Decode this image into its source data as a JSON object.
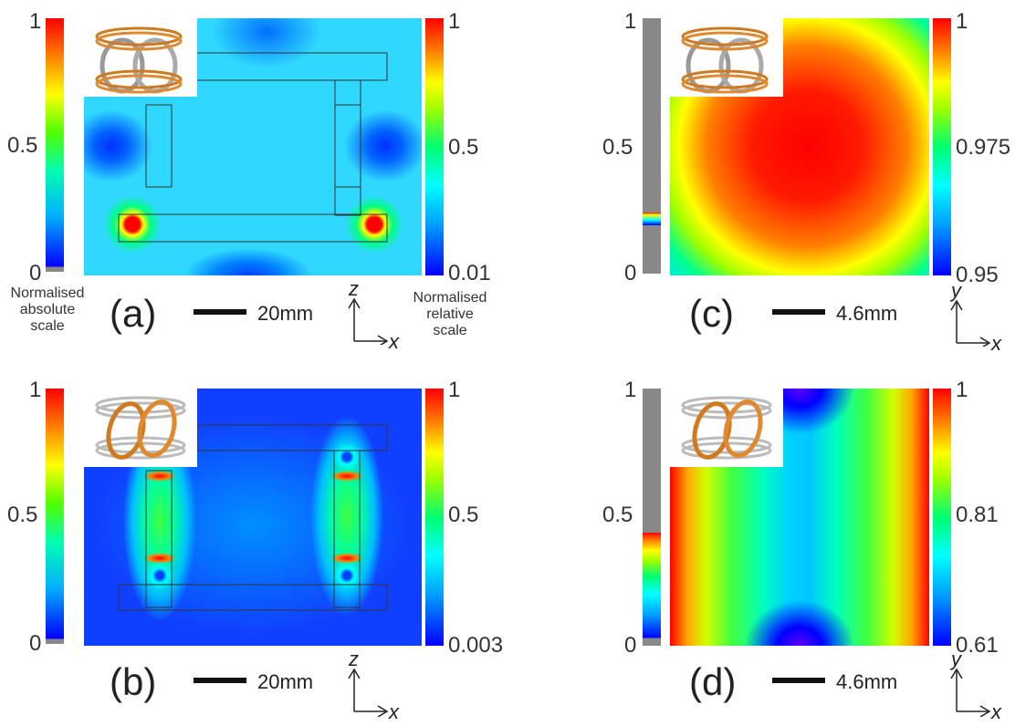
{
  "panels": {
    "a": {
      "label": "(a)",
      "scale_text": "20mm",
      "abs_ticks": [
        "1",
        "0.5",
        "0"
      ],
      "rel_ticks": [
        "1",
        "0.5",
        "0.01"
      ],
      "abs_caption": "Normalised\nabsolute\nscale",
      "rel_caption": "Normalised\nrelative\nscale",
      "axis_v": "z",
      "axis_h": "x"
    },
    "b": {
      "label": "(b)",
      "scale_text": "20mm",
      "abs_ticks": [
        "1",
        "0.5",
        "0"
      ],
      "rel_ticks": [
        "1",
        "0.5",
        "0.003"
      ],
      "axis_v": "z",
      "axis_h": "x"
    },
    "c": {
      "label": "(c)",
      "scale_text": "4.6mm",
      "abs_ticks": [
        "1",
        "0.5",
        "0"
      ],
      "rel_ticks": [
        "1",
        "0.975",
        "0.95"
      ],
      "axis_v": "y",
      "axis_h": "x"
    },
    "d": {
      "label": "(d)",
      "scale_text": "4.6mm",
      "abs_ticks": [
        "1",
        "0.5",
        "0"
      ],
      "rel_ticks": [
        "1",
        "0.81",
        "0.61"
      ],
      "axis_v": "y",
      "axis_h": "x"
    }
  },
  "colormap": [
    "#0000ff",
    "#00a0ff",
    "#00ffff",
    "#00ff70",
    "#a0ff00",
    "#ffff00",
    "#ff8000",
    "#ff0000"
  ]
}
